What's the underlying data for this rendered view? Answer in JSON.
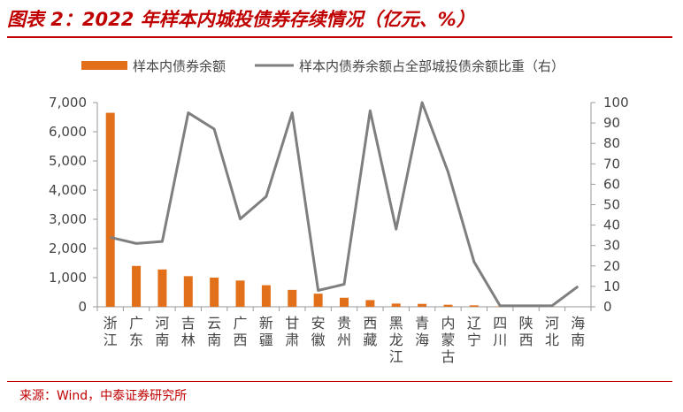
{
  "header": {
    "title": "图表 2：2022 年样本内城投债券存续情况（亿元、%）"
  },
  "footer": {
    "source": "来源：Wind，中泰证券研究所"
  },
  "colors": {
    "bar": "#e2701a",
    "line": "#7f7f7f",
    "accent": "#c00000"
  },
  "chart_data": {
    "type": "bar",
    "categories": [
      "浙江",
      "广东",
      "河南",
      "吉林",
      "云南",
      "广西",
      "新疆",
      "甘肃",
      "安徽",
      "贵州",
      "西藏",
      "黑龙江",
      "青海",
      "内蒙古",
      "辽宁",
      "四川",
      "陕西",
      "河北",
      "海南"
    ],
    "series": [
      {
        "name": "样本内债券余额",
        "type": "bar",
        "axis": "left",
        "values": [
          6650,
          1400,
          1280,
          1050,
          1000,
          900,
          740,
          580,
          450,
          310,
          230,
          110,
          100,
          70,
          50,
          15,
          10,
          5,
          0
        ]
      },
      {
        "name": "样本内债券余额占全部城投债余额比重（右）",
        "type": "line",
        "axis": "right",
        "values": [
          34,
          31,
          32,
          95,
          87,
          43,
          54,
          95,
          8,
          11,
          96,
          38,
          100,
          66,
          22,
          0.5,
          0.5,
          0.5,
          10
        ]
      }
    ],
    "y_left": {
      "min": 0,
      "max": 7000,
      "ticks": [
        0,
        1000,
        2000,
        3000,
        4000,
        5000,
        6000,
        7000
      ],
      "tick_labels": [
        "0",
        "1,000",
        "2,000",
        "3,000",
        "4,000",
        "5,000",
        "6,000",
        "7,000"
      ]
    },
    "y_right": {
      "min": 0,
      "max": 100,
      "ticks": [
        0,
        10,
        20,
        30,
        40,
        50,
        60,
        70,
        80,
        90,
        100
      ],
      "tick_labels": [
        "0",
        "10",
        "20",
        "30",
        "40",
        "50",
        "60",
        "70",
        "80",
        "90",
        "100"
      ]
    },
    "legend_position": "top",
    "grid": false
  }
}
